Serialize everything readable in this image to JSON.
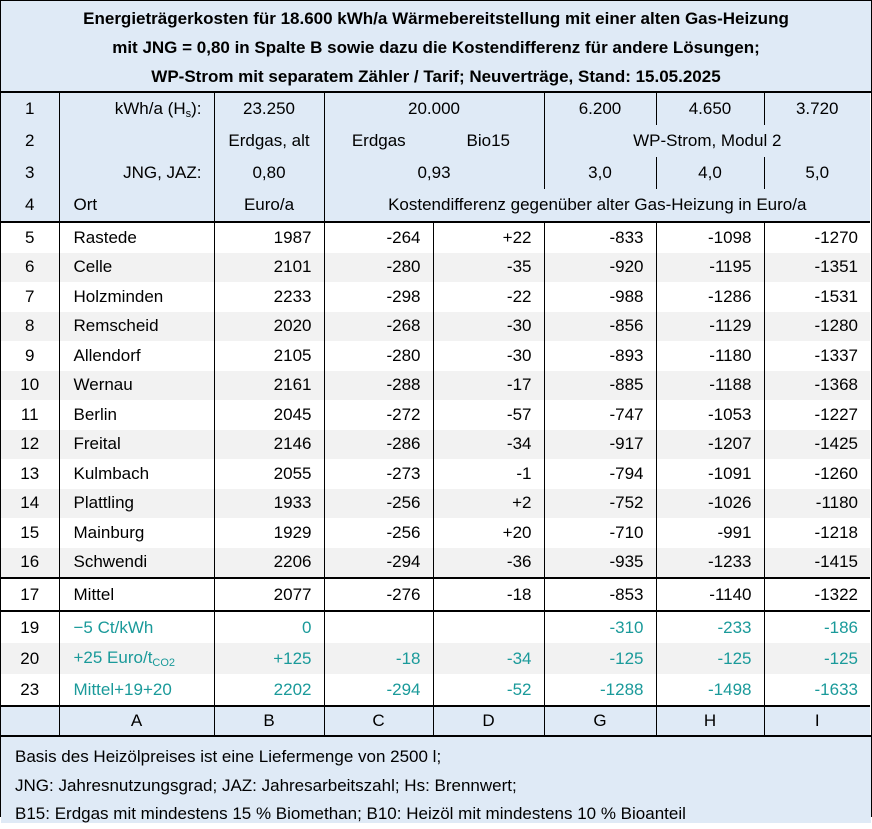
{
  "title": [
    "Energieträgerkosten für 18.600 kWh/a Wärmebereitstellung mit einer alten Gas-Heizung",
    "mit JNG = 0,80 in Spalte B sowie dazu die Kostendifferenz für andere Lösungen;",
    "WP-Strom mit separatem Zähler / Tarif; Neuverträge, Stand: 15.05.2025"
  ],
  "header": {
    "row1": {
      "nr": "1",
      "label": [
        "kWh/a (H",
        "s",
        "):"
      ],
      "b": "23.250",
      "cd": "20.000",
      "g": "6.200",
      "h": "4.650",
      "i": "3.720"
    },
    "row2": {
      "nr": "2",
      "b": "Erdgas, alt",
      "c": "Erdgas",
      "d": "Bio15",
      "ghi": "WP-Strom, Modul 2"
    },
    "row3": {
      "nr": "3",
      "label": "JNG, JAZ:",
      "b": "0,80",
      "cd": "0,93",
      "g": "3,0",
      "h": "4,0",
      "i": "5,0"
    },
    "row4": {
      "nr": "4",
      "label": "Ort",
      "b": "Euro/a",
      "cdghi": "Kostendifferenz gegenüber alter Gas-Heizung in Euro/a"
    }
  },
  "rows": [
    {
      "nr": "5",
      "ort": "Rastede",
      "values": [
        "1987",
        "-264",
        "+22",
        "-833",
        "-1098",
        "-1270"
      ]
    },
    {
      "nr": "6",
      "ort": "Celle",
      "values": [
        "2101",
        "-280",
        "-35",
        "-920",
        "-1195",
        "-1351"
      ]
    },
    {
      "nr": "7",
      "ort": "Holzminden",
      "values": [
        "2233",
        "-298",
        "-22",
        "-988",
        "-1286",
        "-1531"
      ]
    },
    {
      "nr": "8",
      "ort": "Remscheid",
      "values": [
        "2020",
        "-268",
        "-30",
        "-856",
        "-1129",
        "-1280"
      ]
    },
    {
      "nr": "9",
      "ort": "Allendorf",
      "values": [
        "2105",
        "-280",
        "-30",
        "-893",
        "-1180",
        "-1337"
      ]
    },
    {
      "nr": "10",
      "ort": "Wernau",
      "values": [
        "2161",
        "-288",
        "-17",
        "-885",
        "-1188",
        "-1368"
      ]
    },
    {
      "nr": "11",
      "ort": "Berlin",
      "values": [
        "2045",
        "-272",
        "-57",
        "-747",
        "-1053",
        "-1227"
      ]
    },
    {
      "nr": "12",
      "ort": "Freital",
      "values": [
        "2146",
        "-286",
        "-34",
        "-917",
        "-1207",
        "-1425"
      ]
    },
    {
      "nr": "13",
      "ort": "Kulmbach",
      "values": [
        "2055",
        "-273",
        "-1",
        "-794",
        "-1091",
        "-1260"
      ]
    },
    {
      "nr": "14",
      "ort": "Plattling",
      "values": [
        "1933",
        "-256",
        "+2",
        "-752",
        "-1026",
        "-1180"
      ]
    },
    {
      "nr": "15",
      "ort": "Mainburg",
      "values": [
        "1929",
        "-256",
        "+20",
        "-710",
        "-991",
        "-1218"
      ]
    },
    {
      "nr": "16",
      "ort": "Schwendi",
      "values": [
        "2206",
        "-294",
        "-36",
        "-935",
        "-1233",
        "-1415"
      ]
    }
  ],
  "mean": {
    "nr": "17",
    "ort": "Mittel",
    "values": [
      "2077",
      "-276",
      "-18",
      "-853",
      "-1140",
      "-1322"
    ]
  },
  "extra": [
    {
      "nr": "19",
      "ort": [
        "−5 Ct/kWh"
      ],
      "values": [
        "0",
        null,
        null,
        "-310",
        "-233",
        "-186"
      ]
    },
    {
      "nr": "20",
      "ort": [
        "+25 Euro/t",
        "CO2"
      ],
      "values": [
        "+125",
        "-18",
        "-34",
        "-125",
        "-125",
        "-125"
      ]
    },
    {
      "nr": "23",
      "ort": [
        "Mittel+19+20"
      ],
      "values": [
        "2202",
        "-294",
        "-52",
        "-1288",
        "-1498",
        "-1633"
      ]
    }
  ],
  "columns": [
    "A",
    "B",
    "C",
    "D",
    "G",
    "H",
    "I"
  ],
  "notes": [
    "Basis des Heizölpreises ist eine Liefermenge von 2500 l;",
    "JNG: Jahresnutzungsgrad; JAZ: Jahresarbeitszahl; Hs: Brennwert;",
    "B15: Erdgas mit mindestens 15 % Biomethan; B10: Heizöl mit mindestens 10 % Bioanteil"
  ]
}
